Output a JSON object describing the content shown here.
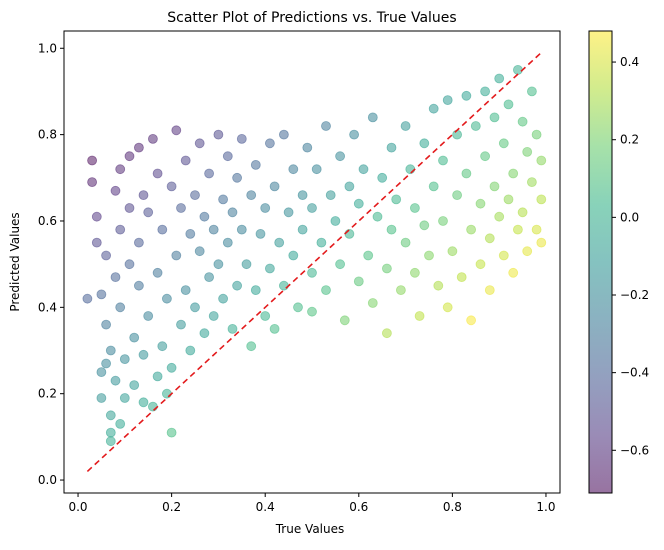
{
  "chart_data": {
    "type": "scatter",
    "title": "Scatter Plot of Predictions vs. True Values",
    "xlabel": "True Values",
    "ylabel": "Predicted Values",
    "xlim": [
      -0.03,
      1.03
    ],
    "ylim": [
      -0.03,
      1.04
    ],
    "xticks": [
      0.0,
      0.2,
      0.4,
      0.6,
      0.8,
      1.0
    ],
    "xtick_labels": [
      "0.0",
      "0.2",
      "0.4",
      "0.6",
      "0.8",
      "1.0"
    ],
    "yticks": [
      0.0,
      0.2,
      0.4,
      0.6,
      0.8,
      1.0
    ],
    "ytick_labels": [
      "0.0",
      "0.2",
      "0.4",
      "0.6",
      "0.8",
      "1.0"
    ],
    "colormap": "viridis",
    "point_alpha": 0.5,
    "reference_line": {
      "x": [
        0.02,
        0.99
      ],
      "y": [
        0.02,
        0.99
      ],
      "color": "#e31a1c",
      "style": "dashed"
    },
    "colorbar": {
      "range": [
        -0.71,
        0.48
      ],
      "ticks": [
        -0.6,
        -0.4,
        -0.2,
        0.0,
        0.2,
        0.4
      ],
      "tick_labels": [
        "−0.6",
        "−0.4",
        "−0.2",
        "0.0",
        "0.2",
        "0.4"
      ]
    },
    "point_color_value": "true_value - predicted_value",
    "grid": false,
    "points": [
      [
        0.02,
        0.42
      ],
      [
        0.03,
        0.74
      ],
      [
        0.03,
        0.69
      ],
      [
        0.04,
        0.61
      ],
      [
        0.04,
        0.55
      ],
      [
        0.05,
        0.43
      ],
      [
        0.05,
        0.25
      ],
      [
        0.05,
        0.19
      ],
      [
        0.06,
        0.52
      ],
      [
        0.06,
        0.36
      ],
      [
        0.06,
        0.27
      ],
      [
        0.07,
        0.11
      ],
      [
        0.07,
        0.09
      ],
      [
        0.07,
        0.15
      ],
      [
        0.07,
        0.3
      ],
      [
        0.08,
        0.67
      ],
      [
        0.08,
        0.47
      ],
      [
        0.08,
        0.23
      ],
      [
        0.09,
        0.13
      ],
      [
        0.09,
        0.4
      ],
      [
        0.09,
        0.58
      ],
      [
        0.09,
        0.72
      ],
      [
        0.1,
        0.28
      ],
      [
        0.1,
        0.19
      ],
      [
        0.11,
        0.75
      ],
      [
        0.11,
        0.63
      ],
      [
        0.11,
        0.5
      ],
      [
        0.12,
        0.33
      ],
      [
        0.12,
        0.22
      ],
      [
        0.13,
        0.77
      ],
      [
        0.13,
        0.55
      ],
      [
        0.13,
        0.45
      ],
      [
        0.14,
        0.18
      ],
      [
        0.14,
        0.29
      ],
      [
        0.14,
        0.66
      ],
      [
        0.15,
        0.38
      ],
      [
        0.15,
        0.62
      ],
      [
        0.16,
        0.79
      ],
      [
        0.16,
        0.17
      ],
      [
        0.17,
        0.24
      ],
      [
        0.17,
        0.48
      ],
      [
        0.17,
        0.71
      ],
      [
        0.18,
        0.31
      ],
      [
        0.18,
        0.58
      ],
      [
        0.19,
        0.2
      ],
      [
        0.19,
        0.42
      ],
      [
        0.2,
        0.11
      ],
      [
        0.2,
        0.68
      ],
      [
        0.2,
        0.26
      ],
      [
        0.21,
        0.52
      ],
      [
        0.21,
        0.81
      ],
      [
        0.22,
        0.36
      ],
      [
        0.22,
        0.63
      ],
      [
        0.23,
        0.44
      ],
      [
        0.23,
        0.74
      ],
      [
        0.24,
        0.57
      ],
      [
        0.24,
        0.3
      ],
      [
        0.25,
        0.66
      ],
      [
        0.25,
        0.4
      ],
      [
        0.26,
        0.78
      ],
      [
        0.26,
        0.53
      ],
      [
        0.27,
        0.34
      ],
      [
        0.27,
        0.61
      ],
      [
        0.28,
        0.47
      ],
      [
        0.28,
        0.71
      ],
      [
        0.29,
        0.38
      ],
      [
        0.29,
        0.58
      ],
      [
        0.3,
        0.8
      ],
      [
        0.3,
        0.5
      ],
      [
        0.31,
        0.65
      ],
      [
        0.31,
        0.42
      ],
      [
        0.32,
        0.55
      ],
      [
        0.32,
        0.75
      ],
      [
        0.33,
        0.35
      ],
      [
        0.33,
        0.62
      ],
      [
        0.34,
        0.45
      ],
      [
        0.34,
        0.7
      ],
      [
        0.35,
        0.58
      ],
      [
        0.35,
        0.79
      ],
      [
        0.36,
        0.5
      ],
      [
        0.37,
        0.31
      ],
      [
        0.37,
        0.66
      ],
      [
        0.38,
        0.44
      ],
      [
        0.38,
        0.73
      ],
      [
        0.39,
        0.57
      ],
      [
        0.4,
        0.38
      ],
      [
        0.4,
        0.63
      ],
      [
        0.41,
        0.78
      ],
      [
        0.41,
        0.49
      ],
      [
        0.42,
        0.35
      ],
      [
        0.42,
        0.68
      ],
      [
        0.43,
        0.55
      ],
      [
        0.44,
        0.8
      ],
      [
        0.44,
        0.45
      ],
      [
        0.45,
        0.62
      ],
      [
        0.46,
        0.72
      ],
      [
        0.46,
        0.52
      ],
      [
        0.47,
        0.4
      ],
      [
        0.48,
        0.66
      ],
      [
        0.48,
        0.58
      ],
      [
        0.49,
        0.77
      ],
      [
        0.5,
        0.48
      ],
      [
        0.5,
        0.63
      ],
      [
        0.5,
        0.39
      ],
      [
        0.51,
        0.72
      ],
      [
        0.52,
        0.55
      ],
      [
        0.53,
        0.82
      ],
      [
        0.53,
        0.44
      ],
      [
        0.54,
        0.66
      ],
      [
        0.55,
        0.6
      ],
      [
        0.56,
        0.75
      ],
      [
        0.56,
        0.5
      ],
      [
        0.57,
        0.37
      ],
      [
        0.58,
        0.68
      ],
      [
        0.58,
        0.57
      ],
      [
        0.59,
        0.8
      ],
      [
        0.6,
        0.46
      ],
      [
        0.6,
        0.64
      ],
      [
        0.61,
        0.72
      ],
      [
        0.62,
        0.52
      ],
      [
        0.63,
        0.84
      ],
      [
        0.63,
        0.41
      ],
      [
        0.64,
        0.61
      ],
      [
        0.65,
        0.7
      ],
      [
        0.66,
        0.49
      ],
      [
        0.66,
        0.34
      ],
      [
        0.67,
        0.77
      ],
      [
        0.67,
        0.58
      ],
      [
        0.68,
        0.65
      ],
      [
        0.69,
        0.44
      ],
      [
        0.7,
        0.82
      ],
      [
        0.7,
        0.55
      ],
      [
        0.71,
        0.72
      ],
      [
        0.72,
        0.48
      ],
      [
        0.72,
        0.63
      ],
      [
        0.73,
        0.38
      ],
      [
        0.74,
        0.78
      ],
      [
        0.74,
        0.59
      ],
      [
        0.75,
        0.52
      ],
      [
        0.76,
        0.86
      ],
      [
        0.76,
        0.68
      ],
      [
        0.77,
        0.45
      ],
      [
        0.78,
        0.74
      ],
      [
        0.78,
        0.6
      ],
      [
        0.79,
        0.88
      ],
      [
        0.79,
        0.4
      ],
      [
        0.8,
        0.53
      ],
      [
        0.81,
        0.8
      ],
      [
        0.81,
        0.66
      ],
      [
        0.82,
        0.47
      ],
      [
        0.83,
        0.89
      ],
      [
        0.83,
        0.71
      ],
      [
        0.84,
        0.58
      ],
      [
        0.84,
        0.37
      ],
      [
        0.85,
        0.82
      ],
      [
        0.86,
        0.64
      ],
      [
        0.86,
        0.5
      ],
      [
        0.87,
        0.9
      ],
      [
        0.87,
        0.75
      ],
      [
        0.88,
        0.56
      ],
      [
        0.88,
        0.44
      ],
      [
        0.89,
        0.84
      ],
      [
        0.89,
        0.68
      ],
      [
        0.9,
        0.61
      ],
      [
        0.9,
        0.93
      ],
      [
        0.91,
        0.52
      ],
      [
        0.91,
        0.78
      ],
      [
        0.92,
        0.87
      ],
      [
        0.92,
        0.65
      ],
      [
        0.93,
        0.48
      ],
      [
        0.93,
        0.71
      ],
      [
        0.94,
        0.95
      ],
      [
        0.94,
        0.58
      ],
      [
        0.95,
        0.83
      ],
      [
        0.95,
        0.62
      ],
      [
        0.96,
        0.76
      ],
      [
        0.96,
        0.53
      ],
      [
        0.97,
        0.9
      ],
      [
        0.97,
        0.69
      ],
      [
        0.98,
        0.58
      ],
      [
        0.98,
        0.8
      ],
      [
        0.99,
        0.65
      ],
      [
        0.99,
        0.74
      ],
      [
        0.99,
        0.55
      ]
    ]
  }
}
